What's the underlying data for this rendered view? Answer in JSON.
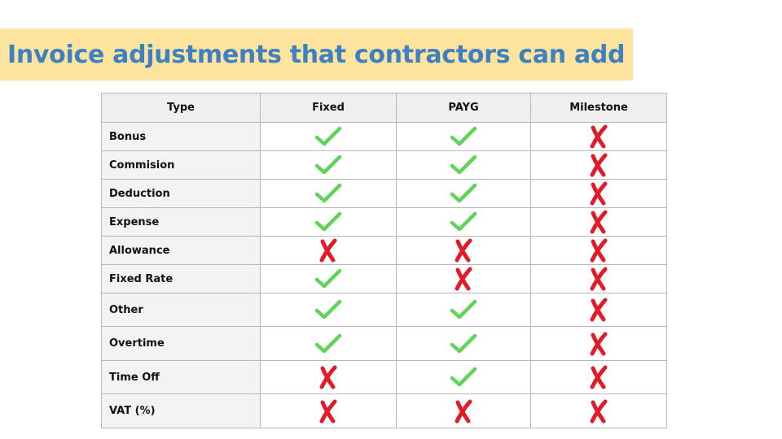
{
  "title": "Invoice adjustments that contractors can add",
  "table": {
    "headers": [
      "Type",
      "Fixed",
      "PAYG",
      "Milestone"
    ],
    "rows": [
      {
        "label": "Bonus",
        "values": [
          true,
          true,
          false
        ]
      },
      {
        "label": "Commision",
        "values": [
          true,
          true,
          false
        ]
      },
      {
        "label": "Deduction",
        "values": [
          true,
          true,
          false
        ]
      },
      {
        "label": "Expense",
        "values": [
          true,
          true,
          false
        ]
      },
      {
        "label": "Allowance",
        "values": [
          false,
          false,
          false
        ]
      },
      {
        "label": "Fixed Rate",
        "values": [
          true,
          false,
          false
        ]
      },
      {
        "label": "Other",
        "values": [
          true,
          true,
          false
        ]
      },
      {
        "label": "Overtime",
        "values": [
          true,
          true,
          false
        ]
      },
      {
        "label": "Time Off",
        "values": [
          false,
          true,
          false
        ]
      },
      {
        "label": "VAT (%)",
        "values": [
          false,
          false,
          false
        ]
      }
    ]
  },
  "icons": {
    "yes": "check-icon",
    "no": "cross-icon"
  },
  "colors": {
    "title_text": "#3f80c2",
    "title_banner": "#fde49e",
    "check": "#5fd35a",
    "cross": "#e21a2a",
    "header_bg": "#efefef",
    "label_bg": "#f3f3f3",
    "border": "#b7b7b7"
  }
}
